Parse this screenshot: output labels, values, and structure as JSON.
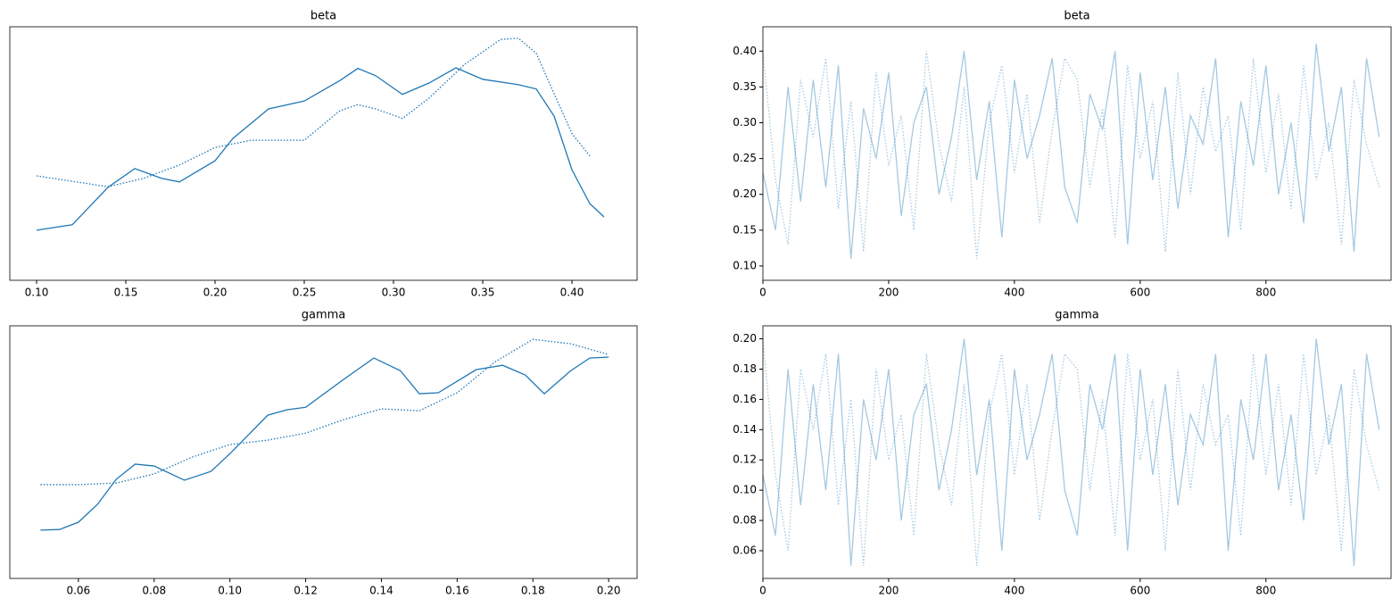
{
  "chart_data": [
    {
      "type": "line",
      "title": "beta",
      "xlim": [
        0.085,
        0.4365
      ],
      "ylim": [
        0,
        4.2
      ],
      "xticks": [
        {
          "value": 0.1,
          "label": "0.10"
        },
        0.15,
        {
          "value": 0.2,
          "label": "0.20"
        },
        0.25,
        {
          "value": 0.3,
          "label": "0.30"
        },
        0.35,
        {
          "value": 0.4,
          "label": "0.40"
        }
      ],
      "series": [
        {
          "color": "#1f77b4",
          "linestyle": "solid",
          "x": [
            0.1,
            0.12,
            0.14,
            0.155,
            0.17,
            0.18,
            0.2,
            0.21,
            0.23,
            0.25,
            0.27,
            0.28,
            0.29,
            0.305,
            0.32,
            0.335,
            0.35,
            0.37,
            0.38,
            0.39,
            0.4,
            0.41,
            0.418
          ],
          "values": [
            0.83,
            0.92,
            1.54,
            1.85,
            1.69,
            1.63,
            1.98,
            2.35,
            2.84,
            2.97,
            3.31,
            3.51,
            3.39,
            3.08,
            3.27,
            3.52,
            3.33,
            3.24,
            3.17,
            2.72,
            1.83,
            1.27,
            1.05
          ]
        },
        {
          "color": "#1f77b4",
          "linestyle": "dotted",
          "x": [
            0.1,
            0.12,
            0.14,
            0.16,
            0.18,
            0.2,
            0.22,
            0.25,
            0.27,
            0.28,
            0.29,
            0.305,
            0.32,
            0.34,
            0.36,
            0.37,
            0.38,
            0.39,
            0.4,
            0.41
          ],
          "values": [
            1.73,
            1.64,
            1.55,
            1.69,
            1.91,
            2.2,
            2.32,
            2.32,
            2.81,
            2.91,
            2.84,
            2.68,
            3.02,
            3.58,
            3.99,
            4.01,
            3.76,
            3.09,
            2.43,
            2.06
          ]
        }
      ]
    },
    {
      "type": "line",
      "title": "beta",
      "xlim": [
        0,
        999
      ],
      "ylim": [
        0.08,
        0.434
      ],
      "alpha": 0.4,
      "xticks": [
        0,
        200,
        400,
        600,
        800
      ],
      "yticks": [
        {
          "value": 0.1,
          "label": "0.10"
        },
        0.15,
        {
          "value": 0.2,
          "label": "0.20"
        },
        0.25,
        {
          "value": 0.3,
          "label": "0.30"
        },
        0.35,
        {
          "value": 0.4,
          "label": "0.40"
        }
      ],
      "x": [
        0,
        20,
        40,
        60,
        80,
        100,
        120,
        140,
        160,
        180,
        200,
        220,
        240,
        260,
        280,
        300,
        320,
        340,
        360,
        380,
        400,
        420,
        440,
        460,
        480,
        500,
        520,
        540,
        560,
        580,
        600,
        620,
        640,
        660,
        680,
        700,
        720,
        740,
        760,
        780,
        800,
        820,
        840,
        860,
        880,
        900,
        920,
        940,
        960,
        980
      ],
      "series": [
        {
          "color": "#1f77b4",
          "linestyle": "solid",
          "values": [
            0.23,
            0.15,
            0.35,
            0.19,
            0.36,
            0.21,
            0.38,
            0.11,
            0.32,
            0.25,
            0.37,
            0.17,
            0.3,
            0.35,
            0.2,
            0.28,
            0.4,
            0.22,
            0.33,
            0.14,
            0.36,
            0.25,
            0.31,
            0.39,
            0.21,
            0.16,
            0.34,
            0.29,
            0.4,
            0.13,
            0.37,
            0.22,
            0.35,
            0.18,
            0.31,
            0.27,
            0.39,
            0.14,
            0.33,
            0.24,
            0.38,
            0.2,
            0.3,
            0.16,
            0.41,
            0.26,
            0.35,
            0.12,
            0.39,
            0.28
          ]
        },
        {
          "color": "#1f77b4",
          "linestyle": "dotted",
          "values": [
            0.4,
            0.22,
            0.13,
            0.36,
            0.28,
            0.39,
            0.18,
            0.33,
            0.12,
            0.37,
            0.24,
            0.31,
            0.15,
            0.4,
            0.27,
            0.19,
            0.35,
            0.11,
            0.3,
            0.38,
            0.23,
            0.34,
            0.16,
            0.29,
            0.39,
            0.36,
            0.21,
            0.32,
            0.14,
            0.38,
            0.25,
            0.33,
            0.12,
            0.37,
            0.2,
            0.35,
            0.26,
            0.31,
            0.15,
            0.39,
            0.23,
            0.34,
            0.18,
            0.38,
            0.22,
            0.3,
            0.13,
            0.36,
            0.27,
            0.21
          ]
        }
      ]
    },
    {
      "type": "line",
      "title": "gamma",
      "xlim": [
        0.0419,
        0.2075
      ],
      "ylim": [
        0,
        8
      ],
      "xticks": [
        0.06,
        0.08,
        {
          "value": 0.1,
          "label": "0.10"
        },
        0.12,
        0.14,
        0.16,
        0.18,
        {
          "value": 0.2,
          "label": "0.20"
        }
      ],
      "series": [
        {
          "color": "#1f77b4",
          "linestyle": "solid",
          "x": [
            0.05,
            0.055,
            0.06,
            0.065,
            0.07,
            0.075,
            0.08,
            0.088,
            0.095,
            0.1,
            0.11,
            0.115,
            0.12,
            0.13,
            0.138,
            0.145,
            0.15,
            0.155,
            0.165,
            0.172,
            0.178,
            0.183,
            0.19,
            0.195,
            0.2
          ],
          "values": [
            1.53,
            1.55,
            1.78,
            2.34,
            3.14,
            3.62,
            3.56,
            3.11,
            3.39,
            3.95,
            5.17,
            5.34,
            5.42,
            6.3,
            6.98,
            6.58,
            5.85,
            5.88,
            6.61,
            6.75,
            6.44,
            5.85,
            6.58,
            6.98,
            7.01
          ]
        },
        {
          "color": "#1f77b4",
          "linestyle": "dotted",
          "x": [
            0.05,
            0.06,
            0.07,
            0.08,
            0.09,
            0.1,
            0.11,
            0.12,
            0.13,
            0.14,
            0.15,
            0.16,
            0.17,
            0.18,
            0.19,
            0.2
          ],
          "values": [
            2.97,
            2.97,
            3.02,
            3.31,
            3.84,
            4.24,
            4.38,
            4.6,
            5.03,
            5.37,
            5.31,
            5.88,
            6.86,
            7.57,
            7.43,
            7.09
          ]
        }
      ]
    },
    {
      "type": "line",
      "title": "gamma",
      "xlim": [
        0,
        999
      ],
      "ylim": [
        0.0417,
        0.2086
      ],
      "alpha": 0.4,
      "xticks": [
        0,
        200,
        400,
        600,
        800
      ],
      "yticks": [
        0.06,
        0.08,
        {
          "value": 0.1,
          "label": "0.10"
        },
        0.12,
        0.14,
        0.16,
        0.18,
        {
          "value": 0.2,
          "label": "0.20"
        }
      ],
      "x": [
        0,
        20,
        40,
        60,
        80,
        100,
        120,
        140,
        160,
        180,
        200,
        220,
        240,
        260,
        280,
        300,
        320,
        340,
        360,
        380,
        400,
        420,
        440,
        460,
        480,
        500,
        520,
        540,
        560,
        580,
        600,
        620,
        640,
        660,
        680,
        700,
        720,
        740,
        760,
        780,
        800,
        820,
        840,
        860,
        880,
        900,
        920,
        940,
        960,
        980
      ],
      "series": [
        {
          "color": "#1f77b4",
          "linestyle": "solid",
          "values": [
            0.11,
            0.07,
            0.18,
            0.09,
            0.17,
            0.1,
            0.19,
            0.05,
            0.16,
            0.12,
            0.18,
            0.08,
            0.15,
            0.17,
            0.1,
            0.14,
            0.2,
            0.11,
            0.16,
            0.06,
            0.18,
            0.12,
            0.15,
            0.19,
            0.1,
            0.07,
            0.17,
            0.14,
            0.19,
            0.06,
            0.18,
            0.11,
            0.17,
            0.09,
            0.15,
            0.13,
            0.19,
            0.06,
            0.16,
            0.12,
            0.19,
            0.1,
            0.15,
            0.08,
            0.2,
            0.13,
            0.17,
            0.05,
            0.19,
            0.14
          ]
        },
        {
          "color": "#1f77b4",
          "linestyle": "dotted",
          "values": [
            0.2,
            0.11,
            0.06,
            0.18,
            0.14,
            0.19,
            0.09,
            0.16,
            0.05,
            0.18,
            0.12,
            0.15,
            0.07,
            0.19,
            0.13,
            0.09,
            0.17,
            0.05,
            0.15,
            0.19,
            0.11,
            0.17,
            0.08,
            0.14,
            0.19,
            0.18,
            0.1,
            0.16,
            0.07,
            0.19,
            0.12,
            0.16,
            0.06,
            0.18,
            0.1,
            0.17,
            0.13,
            0.15,
            0.07,
            0.19,
            0.11,
            0.17,
            0.09,
            0.19,
            0.11,
            0.15,
            0.06,
            0.18,
            0.13,
            0.1
          ]
        }
      ]
    }
  ]
}
